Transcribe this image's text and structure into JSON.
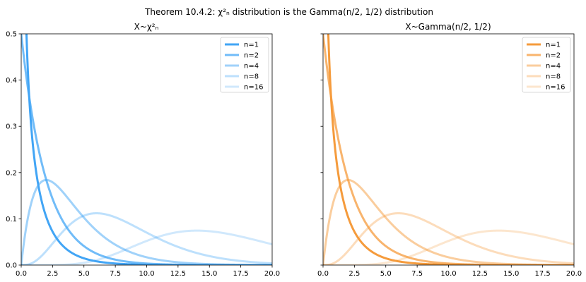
{
  "figure": {
    "suptitle": "Theorem 10.4.2: χ²ₙ distribution is the Gamma(n/2, 1/2) distribution"
  },
  "chart_data": [
    {
      "type": "line",
      "title": "X~χ²ₙ",
      "function": "chi2_pdf",
      "xlim": [
        0,
        20
      ],
      "ylim": [
        0,
        0.5
      ],
      "xticks": [
        "0.0",
        "2.5",
        "5.0",
        "7.5",
        "10.0",
        "12.5",
        "15.0",
        "17.5",
        "20.0"
      ],
      "yticks": [
        "0.0",
        "0.1",
        "0.2",
        "0.3",
        "0.4",
        "0.5"
      ],
      "legend_placement": "top-right",
      "series": [
        {
          "name": "n=1",
          "n": 1,
          "color": "#42a5f5",
          "opacity": 1.0
        },
        {
          "name": "n=2",
          "n": 2,
          "color": "#42a5f5",
          "opacity": 0.75
        },
        {
          "name": "n=4",
          "n": 4,
          "color": "#42a5f5",
          "opacity": 0.5
        },
        {
          "name": "n=8",
          "n": 8,
          "color": "#42a5f5",
          "opacity": 0.35
        },
        {
          "name": "n=16",
          "n": 16,
          "color": "#42a5f5",
          "opacity": 0.25
        }
      ]
    },
    {
      "type": "line",
      "title": "X~Gamma(n/2, 1/2)",
      "function": "gamma_pdf",
      "xlim": [
        0,
        20
      ],
      "ylim": [
        0,
        0.5
      ],
      "xticks": [
        "0.0",
        "2.5",
        "5.0",
        "7.5",
        "10.0",
        "12.5",
        "15.0",
        "17.5",
        "20.0"
      ],
      "yticks": [
        "0.0",
        "0.1",
        "0.2",
        "0.3",
        "0.4",
        "0.5"
      ],
      "legend_placement": "top-right",
      "series": [
        {
          "name": "n=1",
          "n": 1,
          "color": "#f59b3c",
          "opacity": 1.0
        },
        {
          "name": "n=2",
          "n": 2,
          "color": "#f59b3c",
          "opacity": 0.75
        },
        {
          "name": "n=4",
          "n": 4,
          "color": "#f59b3c",
          "opacity": 0.5
        },
        {
          "name": "n=8",
          "n": 8,
          "color": "#f59b3c",
          "opacity": 0.35
        },
        {
          "name": "n=16",
          "n": 16,
          "color": "#f59b3c",
          "opacity": 0.25
        }
      ]
    }
  ]
}
